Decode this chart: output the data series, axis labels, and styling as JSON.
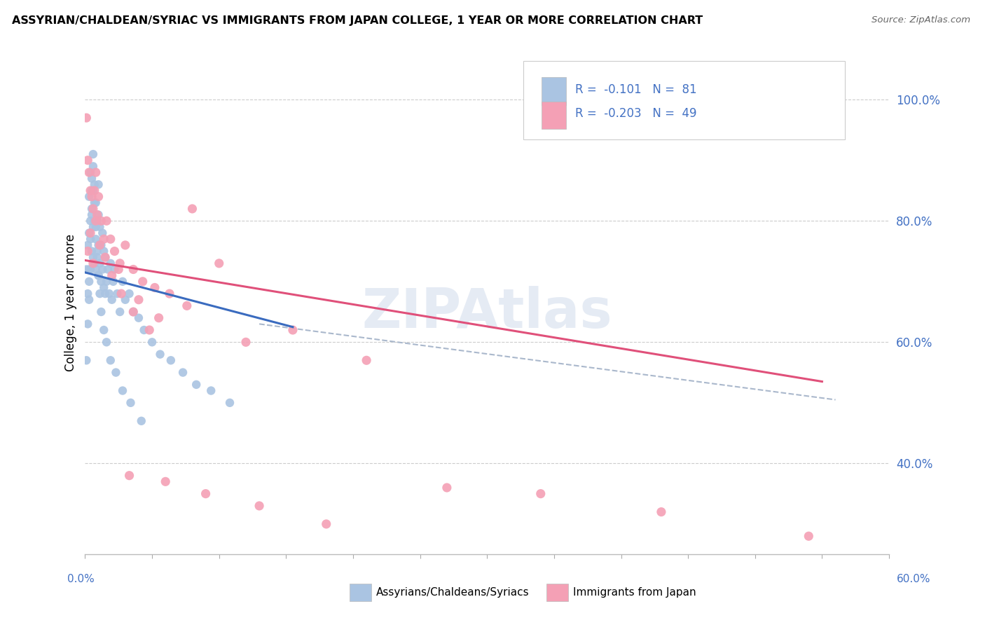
{
  "title": "ASSYRIAN/CHALDEAN/SYRIAC VS IMMIGRANTS FROM JAPAN COLLEGE, 1 YEAR OR MORE CORRELATION CHART",
  "source_text": "Source: ZipAtlas.com",
  "ylabel": "College, 1 year or more",
  "yaxis_values": [
    0.4,
    0.6,
    0.8,
    1.0
  ],
  "xlim": [
    0.0,
    0.6
  ],
  "ylim": [
    0.25,
    1.08
  ],
  "blue_color": "#aac4e2",
  "pink_color": "#f4a0b5",
  "blue_line_color": "#3a6bbf",
  "pink_line_color": "#e0507a",
  "dashed_line_color": "#aab8cc",
  "watermark": "ZIPAtlas",
  "blue_scatter_x": [
    0.001,
    0.002,
    0.002,
    0.003,
    0.003,
    0.003,
    0.004,
    0.004,
    0.004,
    0.005,
    0.005,
    0.005,
    0.006,
    0.006,
    0.006,
    0.006,
    0.007,
    0.007,
    0.007,
    0.008,
    0.008,
    0.008,
    0.009,
    0.009,
    0.01,
    0.01,
    0.01,
    0.01,
    0.011,
    0.011,
    0.012,
    0.012,
    0.013,
    0.013,
    0.014,
    0.014,
    0.015,
    0.015,
    0.016,
    0.017,
    0.018,
    0.019,
    0.02,
    0.021,
    0.022,
    0.024,
    0.026,
    0.028,
    0.03,
    0.033,
    0.036,
    0.04,
    0.044,
    0.05,
    0.056,
    0.064,
    0.073,
    0.083,
    0.094,
    0.108,
    0.001,
    0.002,
    0.003,
    0.003,
    0.004,
    0.005,
    0.005,
    0.006,
    0.007,
    0.008,
    0.009,
    0.01,
    0.011,
    0.012,
    0.014,
    0.016,
    0.019,
    0.023,
    0.028,
    0.034,
    0.042
  ],
  "blue_scatter_y": [
    0.72,
    0.68,
    0.76,
    0.7,
    0.78,
    0.84,
    0.72,
    0.8,
    0.88,
    0.75,
    0.82,
    0.87,
    0.74,
    0.79,
    0.85,
    0.91,
    0.73,
    0.8,
    0.86,
    0.72,
    0.77,
    0.83,
    0.74,
    0.8,
    0.71,
    0.76,
    0.81,
    0.86,
    0.73,
    0.79,
    0.7,
    0.76,
    0.72,
    0.78,
    0.69,
    0.75,
    0.68,
    0.74,
    0.7,
    0.72,
    0.68,
    0.73,
    0.67,
    0.7,
    0.72,
    0.68,
    0.65,
    0.7,
    0.67,
    0.68,
    0.65,
    0.64,
    0.62,
    0.6,
    0.58,
    0.57,
    0.55,
    0.53,
    0.52,
    0.5,
    0.57,
    0.63,
    0.67,
    0.72,
    0.77,
    0.81,
    0.85,
    0.89,
    0.83,
    0.79,
    0.75,
    0.71,
    0.68,
    0.65,
    0.62,
    0.6,
    0.57,
    0.55,
    0.52,
    0.5,
    0.47
  ],
  "pink_scatter_x": [
    0.001,
    0.002,
    0.003,
    0.004,
    0.005,
    0.006,
    0.007,
    0.008,
    0.009,
    0.01,
    0.012,
    0.014,
    0.016,
    0.019,
    0.022,
    0.026,
    0.03,
    0.036,
    0.043,
    0.052,
    0.063,
    0.076,
    0.025,
    0.04,
    0.055,
    0.08,
    0.1,
    0.12,
    0.155,
    0.21,
    0.27,
    0.34,
    0.43,
    0.54,
    0.002,
    0.004,
    0.006,
    0.008,
    0.011,
    0.015,
    0.02,
    0.027,
    0.036,
    0.048,
    0.033,
    0.06,
    0.09,
    0.13,
    0.18
  ],
  "pink_scatter_y": [
    0.97,
    0.9,
    0.88,
    0.85,
    0.84,
    0.82,
    0.85,
    0.88,
    0.81,
    0.84,
    0.8,
    0.77,
    0.8,
    0.77,
    0.75,
    0.73,
    0.76,
    0.72,
    0.7,
    0.69,
    0.68,
    0.66,
    0.72,
    0.67,
    0.64,
    0.82,
    0.73,
    0.6,
    0.62,
    0.57,
    0.36,
    0.35,
    0.32,
    0.28,
    0.75,
    0.78,
    0.73,
    0.8,
    0.76,
    0.74,
    0.71,
    0.68,
    0.65,
    0.62,
    0.38,
    0.37,
    0.35,
    0.33,
    0.3
  ],
  "blue_line_x0": 0.0,
  "blue_line_x1": 0.155,
  "blue_line_y0": 0.715,
  "blue_line_y1": 0.625,
  "pink_line_x0": 0.0,
  "pink_line_x1": 0.55,
  "pink_line_y0": 0.735,
  "pink_line_y1": 0.535,
  "dash_line_x0": 0.13,
  "dash_line_x1": 0.56,
  "dash_line_y0": 0.63,
  "dash_line_y1": 0.505
}
